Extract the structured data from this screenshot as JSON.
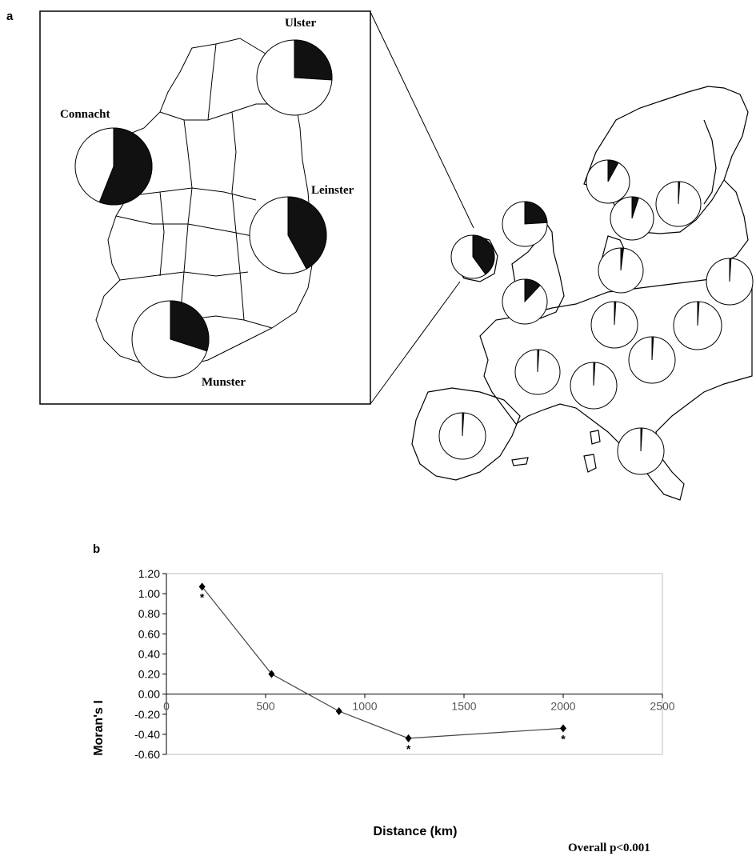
{
  "panel_a": {
    "letter": "a",
    "inset_pies": [
      {
        "label": "Ulster",
        "fraction": 0.26
      },
      {
        "label": "Connacht",
        "fraction": 0.56
      },
      {
        "label": "Leinster",
        "fraction": 0.42
      },
      {
        "label": "Munster",
        "fraction": 0.3
      }
    ],
    "europe_pies": [
      {
        "fraction": 0.4
      },
      {
        "fraction": 0.24
      },
      {
        "fraction": 0.08
      },
      {
        "fraction": 0.05
      },
      {
        "fraction": 0.12
      },
      {
        "fraction": 0.01
      },
      {
        "fraction": 0.02
      },
      {
        "fraction": 0.01
      },
      {
        "fraction": 0.01
      },
      {
        "fraction": 0.01
      },
      {
        "fraction": 0.01
      },
      {
        "fraction": 0.01
      },
      {
        "fraction": 0.01
      },
      {
        "fraction": 0.01
      },
      {
        "fraction": 0.01
      },
      {
        "fraction": 0.01
      }
    ],
    "colors": {
      "positive": "#111111",
      "negative": "#ffffff",
      "outline": "#000000"
    }
  },
  "panel_b": {
    "letter": "b",
    "overall_note": "Overall p<0.001"
  },
  "chart_data": {
    "type": "line",
    "xlabel": "Distance (km)",
    "ylabel": "Moran's I",
    "xlim": [
      0,
      2500
    ],
    "ylim": [
      -0.6,
      1.2
    ],
    "x_ticks": [
      "0",
      "500",
      "1000",
      "1500",
      "2000",
      "2500"
    ],
    "y_ticks": [
      "1.20",
      "1.00",
      "0.80",
      "0.60",
      "0.40",
      "0.20",
      "0.00",
      "-0.20",
      "-0.40",
      "-0.60"
    ],
    "x": [
      180,
      530,
      870,
      1220,
      2000
    ],
    "values": [
      1.07,
      0.2,
      -0.17,
      -0.44,
      -0.34
    ],
    "significant": [
      true,
      false,
      false,
      true,
      true
    ],
    "significance_marker": "*",
    "grid": false,
    "legend": "none"
  }
}
